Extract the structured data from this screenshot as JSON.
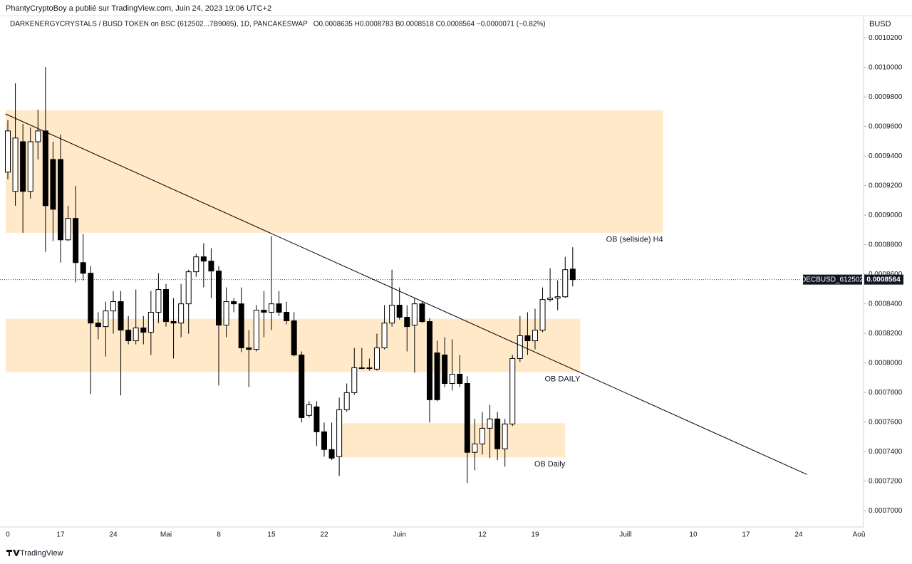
{
  "publisher": "PhantyCryptoBoy a publié sur TradingView.com, Juin 24, 2023 19:06 UTC+2",
  "footer": "TradingView",
  "chart_data": {
    "type": "candlestick",
    "title": "DARKENERGYCRYSTALS / BUSD TOKEN on BSC (612502...7B9085), 1D, PANCAKESWAP",
    "ohlc_text": "O0.0008635  H0.0008783  B0.0008518  C0.0008564  −0.0000071 (−0.82%)",
    "y_axis_label": "BUSD",
    "categories": [
      "0",
      null,
      null,
      null,
      null,
      null,
      null,
      "17",
      null,
      null,
      null,
      null,
      null,
      null,
      "24",
      null,
      null,
      null,
      null,
      null,
      null,
      "Mai",
      null,
      null,
      null,
      null,
      null,
      null,
      "8",
      null,
      null,
      null,
      null,
      null,
      null,
      "15",
      null,
      null,
      null,
      null,
      null,
      null,
      "22",
      null,
      null,
      null,
      null,
      null,
      null,
      null,
      null,
      null,
      "Juin",
      null,
      null,
      null,
      null,
      null,
      null,
      null,
      null,
      null,
      null,
      "12",
      null,
      null,
      null,
      null,
      null,
      null,
      "19",
      null,
      null,
      null,
      null,
      null,
      null,
      null,
      null,
      null,
      null,
      null,
      "Juill",
      null,
      null,
      null,
      null,
      null,
      null,
      null,
      null,
      "10",
      null,
      null,
      null,
      null,
      null,
      null,
      "17",
      null,
      null,
      null,
      null,
      null,
      null,
      "24",
      null,
      null,
      null,
      null,
      null,
      null,
      null,
      "Aoû"
    ],
    "open": [
      0.0009291,
      0.0009161,
      0.0009497,
      0.0009161,
      0.0009497,
      0.000957,
      0.0009377,
      0.0009377,
      0.0008833,
      0.0008978,
      0.0008679,
      0.0008607,
      0.000827,
      0.0008246,
      0.0008352,
      0.0008415,
      0.0008222,
      0.000815,
      0.0008237,
      0.0008208,
      0.0008343,
      0.0008497,
      0.000828,
      0.000827,
      0.00084,
      0.0008617,
      0.0008718,
      0.0008689,
      0.0008622,
      0.0008256,
      0.0008415,
      0.00084,
      0.0008102,
      0.0008092,
      0.0008357,
      0.0008343,
      0.00084,
      0.0008343,
      0.0008285,
      0.0008054,
      0.0007645,
      0.0007703,
      0.0007534,
      0.0007414,
      0.0007366,
      0.0007683,
      0.0007799,
      0.0007967,
      0.0007967,
      0.0007958,
      0.0008102,
      0.000827,
      0.0008391,
      0.0008309,
      0.0008256,
      0.00084,
      0.000828,
      0.0008068,
      0.0008054,
      0.0007861,
      0.0007924,
      0.0007861,
      0.0007395,
      0.0007452,
      0.0007558,
      0.0007621,
      0.0007419,
      0.0007587,
      0.000803,
      0.0008184,
      0.000815,
      0.0008222,
      0.0008429,
      0.0008439,
      0.0008448,
      0.0008635,
      null,
      null,
      null,
      null,
      null,
      null,
      null,
      null,
      null,
      null,
      null,
      null,
      null,
      null,
      null,
      null,
      null,
      null,
      null,
      null,
      null,
      null,
      null,
      null,
      null,
      null,
      null,
      null,
      null,
      null,
      null,
      null,
      null,
      null,
      null,
      null,
      null,
      null
    ],
    "high": [
      0.0009642,
      0.0009892,
      0.0009618,
      0.0009594,
      0.0009714,
      0.0010003,
      0.0009497,
      0.0009546,
      0.0009064,
      0.0009199,
      0.0008872,
      0.0008655,
      0.0008343,
      0.0008415,
      0.0008487,
      0.0008487,
      0.0008318,
      0.0008497,
      0.0008318,
      0.0008487,
      0.0008607,
      0.0008535,
      0.0008439,
      0.0008535,
      0.0008631,
      0.0008737,
      0.0008809,
      0.0008776,
      0.0008655,
      0.0008511,
      0.0008439,
      0.0008511,
      0.0008222,
      0.0008391,
      0.0008487,
      0.0008857,
      0.0008487,
      0.0008415,
      0.0008343,
      0.0008078,
      0.0007741,
      0.0007741,
      0.0007597,
      0.0007597,
      0.0007765,
      0.0007861,
      0.0008102,
      0.0008102,
      0.000803,
      0.0008198,
      0.0008391,
      0.0008631,
      0.0008511,
      0.0008391,
      0.0008439,
      0.0008415,
      0.0008304,
      0.000815,
      0.0008174,
      0.000816,
      0.0008054,
      0.000791,
      0.0007621,
      0.0007669,
      0.0007717,
      0.0007669,
      0.0007621,
      0.0008054,
      0.0008318,
      0.0008343,
      0.0008367,
      0.0008511,
      0.0008641,
      0.0008559,
      0.0008718,
      0.0008783,
      null,
      null,
      null,
      null,
      null,
      null,
      null,
      null,
      null,
      null,
      null,
      null,
      null,
      null,
      null,
      null,
      null,
      null,
      null,
      null,
      null,
      null,
      null,
      null,
      null,
      null,
      null,
      null,
      null,
      null,
      null,
      null,
      null,
      null,
      null,
      null,
      null,
      null
    ],
    "low": [
      0.0009242,
      0.0009064,
      0.0008881,
      0.0009112,
      0.0009377,
      0.0008752,
      0.0008824,
      0.0008679,
      0.0008824,
      0.0008545,
      0.0008559,
      0.0007789,
      0.000816,
      0.0008044,
      0.0008198,
      0.000778,
      0.0008126,
      0.0008126,
      0.0008126,
      0.0008054,
      0.000827,
      0.0008246,
      0.000803,
      0.0008174,
      0.0008198,
      0.0008583,
      0.0008511,
      0.0008439,
      0.0007847,
      0.0008174,
      0.0008343,
      0.0008073,
      0.0007837,
      0.0008078,
      0.0008174,
      0.0008222,
      0.0008318,
      0.0008261,
      0.0008044,
      0.0007597,
      0.000763,
      0.0007438,
      0.0007366,
      0.0007342,
      0.0007236,
      0.0007669,
      0.0007784,
      0.0007958,
      0.0007948,
      0.0007948,
      0.0008092,
      0.0008246,
      0.0008294,
      0.0008078,
      0.0007934,
      0.000827,
      0.0007597,
      0.0007741,
      0.0007837,
      0.0007813,
      0.0007837,
      0.0007188,
      0.0007274,
      0.000738,
      0.0007356,
      0.0007342,
      0.0007298,
      0.0007573,
      0.0008006,
      0.0008054,
      0.0008092,
      0.0008208,
      0.0008415,
      0.0008357,
      0.0008439,
      0.0008518,
      null,
      null,
      null,
      null,
      null,
      null,
      null,
      null,
      null,
      null,
      null,
      null,
      null,
      null,
      null,
      null,
      null,
      null,
      null,
      null,
      null,
      null,
      null,
      null,
      null,
      null,
      null,
      null,
      null,
      null,
      null,
      null,
      null,
      null,
      null,
      null,
      null,
      null
    ],
    "close": [
      0.000957,
      0.0009522,
      0.0009161,
      0.0009497,
      0.000957,
      0.0009064,
      0.000904,
      0.0008833,
      0.0008978,
      0.0008679,
      0.0008607,
      0.000827,
      0.0008246,
      0.0008352,
      0.0008415,
      0.0008222,
      0.000815,
      0.0008237,
      0.0008208,
      0.0008343,
      0.0008497,
      0.000828,
      0.000827,
      0.00084,
      0.0008617,
      0.0008718,
      0.0008689,
      0.0008622,
      0.0008256,
      0.0008415,
      0.00084,
      0.0008102,
      0.0008092,
      0.0008357,
      0.0008343,
      0.00084,
      0.0008343,
      0.0008285,
      0.0008054,
      0.000763,
      0.0007717,
      0.0007534,
      0.0007414,
      0.0007356,
      0.0007683,
      0.0007799,
      0.0007967,
      0.0007962,
      0.0007962,
      0.0008102,
      0.000827,
      0.0008391,
      0.0008309,
      0.0008246,
      0.00084,
      0.000828,
      0.0007751,
      0.0007751,
      0.0007861,
      0.0007924,
      0.0007861,
      0.0007395,
      0.0007452,
      0.0007558,
      0.0007621,
      0.0007419,
      0.0007587,
      0.000803,
      0.0008184,
      0.000815,
      0.0008222,
      0.0008429,
      0.0008439,
      0.0008448,
      0.0008631,
      0.0008564,
      null,
      null,
      null,
      null,
      null,
      null,
      null,
      null,
      null,
      null,
      null,
      null,
      null,
      null,
      null,
      null,
      null,
      null,
      null,
      null,
      null,
      null,
      null,
      null,
      null,
      null,
      null,
      null,
      null,
      null,
      null,
      null,
      null,
      null,
      null,
      null,
      null,
      null
    ],
    "up_color": "#ffffff",
    "down_color": "#000000",
    "zone_color": "#ffe9c8",
    "line_color": "#000000",
    "ylim": [
      0.000689,
      0.001035
    ],
    "yticks": [
      {
        "value": 0.0007,
        "label": "0.0007000"
      },
      {
        "value": 0.00072,
        "label": "0.0007200"
      },
      {
        "value": 0.00074,
        "label": "0.0007400"
      },
      {
        "value": 0.00076,
        "label": "0.0007600"
      },
      {
        "value": 0.00078,
        "label": "0.0007800"
      },
      {
        "value": 0.0008,
        "label": "0.0008000"
      },
      {
        "value": 0.00082,
        "label": "0.0008200"
      },
      {
        "value": 0.00084,
        "label": "0.0008400"
      },
      {
        "value": 0.00086,
        "label": "0.0008600"
      },
      {
        "value": 0.00088,
        "label": "0.0008800"
      },
      {
        "value": 0.0009,
        "label": "0.0009000"
      },
      {
        "value": 0.00092,
        "label": "0.0009200"
      },
      {
        "value": 0.00094,
        "label": "0.0009400"
      },
      {
        "value": 0.00096,
        "label": "0.0009600"
      },
      {
        "value": 0.00098,
        "label": "0.0009800"
      },
      {
        "value": 0.001,
        "label": "0.0010000"
      },
      {
        "value": 0.00102,
        "label": "0.0010200"
      }
    ],
    "zones": [
      {
        "label": "OB (sellside) H4",
        "x0": -0.3,
        "x1": 87,
        "y0": 0.0008881,
        "y1": 0.0009709
      },
      {
        "label": "OB DAILY",
        "x0": -0.3,
        "x1": 76,
        "y0": 0.0007938,
        "y1": 0.0008299
      },
      {
        "label": "OB Daily",
        "x0": 44.2,
        "x1": 74,
        "y0": 0.0007361,
        "y1": 0.0007592
      }
    ],
    "trendline": {
      "x": [
        -0.3,
        106.1
      ],
      "y": [
        0.0009685,
        0.0007245
      ]
    },
    "price_tag": {
      "symbol": "DECBUSD_612502",
      "value": 0.0008564,
      "label": "0.0008564"
    }
  }
}
